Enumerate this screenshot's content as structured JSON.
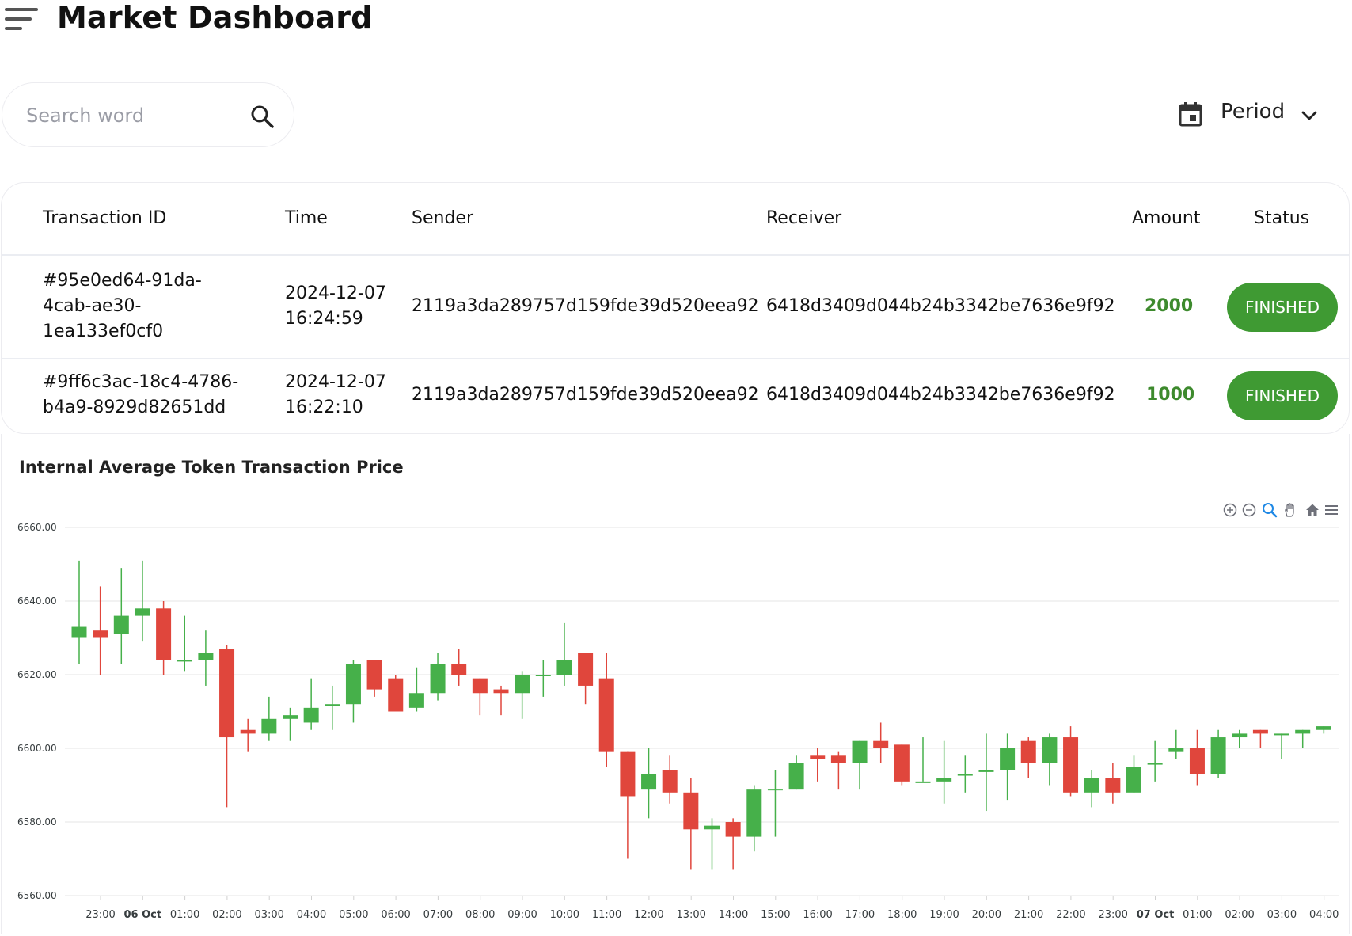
{
  "header": {
    "title": "Market Dashboard",
    "menu_icon": "menu-icon"
  },
  "search": {
    "placeholder": "Search word",
    "value": "",
    "icon": "search-icon"
  },
  "period": {
    "label": "Period",
    "icon": "calendar-icon",
    "dropdown_icon": "chevron-down-icon"
  },
  "table": {
    "columns": [
      "Transaction ID",
      "Time",
      "Sender",
      "Receiver",
      "Amount",
      "Status"
    ],
    "rows": [
      {
        "id_lines": [
          "#95e0ed64-91da-",
          "4cab-ae30-",
          "1ea133ef0cf0"
        ],
        "time_lines": [
          "2024-12-07",
          "16:24:59"
        ],
        "sender": "2119a3da289757d159fde39d520eea92",
        "receiver": "6418d3409d044b24b3342be7636e9f92",
        "amount": "2000",
        "status": "FINISHED"
      },
      {
        "id_lines": [
          "#9ff6c3ac-18c4-4786-",
          "b4a9-8929d82651dd"
        ],
        "time_lines": [
          "2024-12-07",
          "16:22:10"
        ],
        "sender": "2119a3da289757d159fde39d520eea92",
        "receiver": "6418d3409d044b24b3342be7636e9f92",
        "amount": "1000",
        "status": "FINISHED"
      }
    ],
    "status_color": "#3f9a33",
    "amount_color": "#3d8a2d"
  },
  "chart": {
    "toolbar_icons": [
      "zoom-in-icon",
      "zoom-out-icon",
      "zoom-select-icon",
      "pan-icon",
      "home-icon",
      "menu-icon"
    ]
  },
  "chart_data": {
    "type": "candlestick",
    "title": "Internal Average Token Transaction Price",
    "ylim": [
      6560,
      6660
    ],
    "y_ticks": [
      "6560.00",
      "6580.00",
      "6600.00",
      "6620.00",
      "6640.00",
      "6660.00"
    ],
    "x_tick_labels": [
      "23:00",
      "06 Oct",
      "01:00",
      "02:00",
      "03:00",
      "04:00",
      "05:00",
      "06:00",
      "07:00",
      "08:00",
      "09:00",
      "10:00",
      "11:00",
      "12:00",
      "13:00",
      "14:00",
      "15:00",
      "16:00",
      "17:00",
      "18:00",
      "19:00",
      "20:00",
      "21:00",
      "22:00",
      "23:00",
      "07 Oct",
      "01:00",
      "02:00",
      "03:00",
      "04:00"
    ],
    "bold_ticks": [
      "06 Oct",
      "07 Oct"
    ],
    "grid": true,
    "up_color": "#46b04a",
    "down_color": "#e0463c",
    "series": [
      {
        "time": "22:30",
        "o": 6630,
        "h": 6651,
        "l": 6623,
        "c": 6633
      },
      {
        "time": "23:00",
        "o": 6632,
        "h": 6644,
        "l": 6620,
        "c": 6630
      },
      {
        "time": "23:30",
        "o": 6631,
        "h": 6649,
        "l": 6623,
        "c": 6636
      },
      {
        "time": "00:00",
        "o": 6636,
        "h": 6651,
        "l": 6629,
        "c": 6638
      },
      {
        "time": "00:30",
        "o": 6638,
        "h": 6640,
        "l": 6620,
        "c": 6624
      },
      {
        "time": "01:00",
        "o": 6624,
        "h": 6636,
        "l": 6621,
        "c": 6624
      },
      {
        "time": "01:30",
        "o": 6624,
        "h": 6632,
        "l": 6617,
        "c": 6626
      },
      {
        "time": "02:00",
        "o": 6627,
        "h": 6628,
        "l": 6584,
        "c": 6603
      },
      {
        "time": "02:30",
        "o": 6605,
        "h": 6608,
        "l": 6599,
        "c": 6604
      },
      {
        "time": "03:00",
        "o": 6604,
        "h": 6614,
        "l": 6602,
        "c": 6608
      },
      {
        "time": "03:30",
        "o": 6608,
        "h": 6611,
        "l": 6602,
        "c": 6609
      },
      {
        "time": "04:00",
        "o": 6607,
        "h": 6619,
        "l": 6605,
        "c": 6611
      },
      {
        "time": "04:30",
        "o": 6612,
        "h": 6617,
        "l": 6605,
        "c": 6612
      },
      {
        "time": "05:00",
        "o": 6612,
        "h": 6624,
        "l": 6607,
        "c": 6623
      },
      {
        "time": "05:30",
        "o": 6624,
        "h": 6624,
        "l": 6614,
        "c": 6616
      },
      {
        "time": "06:00",
        "o": 6619,
        "h": 6620,
        "l": 6610,
        "c": 6610
      },
      {
        "time": "06:30",
        "o": 6611,
        "h": 6622,
        "l": 6610,
        "c": 6615
      },
      {
        "time": "07:00",
        "o": 6615,
        "h": 6626,
        "l": 6613,
        "c": 6623
      },
      {
        "time": "07:30",
        "o": 6623,
        "h": 6627,
        "l": 6617,
        "c": 6620
      },
      {
        "time": "08:00",
        "o": 6619,
        "h": 6619,
        "l": 6609,
        "c": 6615
      },
      {
        "time": "08:30",
        "o": 6616,
        "h": 6617,
        "l": 6609,
        "c": 6615
      },
      {
        "time": "09:00",
        "o": 6615,
        "h": 6621,
        "l": 6608,
        "c": 6620
      },
      {
        "time": "09:30",
        "o": 6620,
        "h": 6624,
        "l": 6614,
        "c": 6620
      },
      {
        "time": "10:00",
        "o": 6620,
        "h": 6634,
        "l": 6617,
        "c": 6624
      },
      {
        "time": "10:30",
        "o": 6626,
        "h": 6626,
        "l": 6612,
        "c": 6617
      },
      {
        "time": "11:00",
        "o": 6619,
        "h": 6626,
        "l": 6595,
        "c": 6599
      },
      {
        "time": "11:30",
        "o": 6599,
        "h": 6599,
        "l": 6570,
        "c": 6587
      },
      {
        "time": "12:00",
        "o": 6589,
        "h": 6600,
        "l": 6581,
        "c": 6593
      },
      {
        "time": "12:30",
        "o": 6594,
        "h": 6598,
        "l": 6585,
        "c": 6588
      },
      {
        "time": "13:00",
        "o": 6588,
        "h": 6592,
        "l": 6567,
        "c": 6578
      },
      {
        "time": "13:30",
        "o": 6578,
        "h": 6581,
        "l": 6567,
        "c": 6579
      },
      {
        "time": "14:00",
        "o": 6580,
        "h": 6581,
        "l": 6567,
        "c": 6576
      },
      {
        "time": "14:30",
        "o": 6576,
        "h": 6590,
        "l": 6572,
        "c": 6589
      },
      {
        "time": "15:00",
        "o": 6589,
        "h": 6594,
        "l": 6576,
        "c": 6589
      },
      {
        "time": "15:30",
        "o": 6589,
        "h": 6598,
        "l": 6589,
        "c": 6596
      },
      {
        "time": "16:00",
        "o": 6598,
        "h": 6600,
        "l": 6591,
        "c": 6597
      },
      {
        "time": "16:30",
        "o": 6598,
        "h": 6599,
        "l": 6589,
        "c": 6596
      },
      {
        "time": "17:00",
        "o": 6596,
        "h": 6602,
        "l": 6589,
        "c": 6602
      },
      {
        "time": "17:30",
        "o": 6602,
        "h": 6607,
        "l": 6596,
        "c": 6600
      },
      {
        "time": "18:00",
        "o": 6601,
        "h": 6601,
        "l": 6590,
        "c": 6591
      },
      {
        "time": "18:30",
        "o": 6591,
        "h": 6603,
        "l": 6591,
        "c": 6591
      },
      {
        "time": "19:00",
        "o": 6591,
        "h": 6602,
        "l": 6585,
        "c": 6592
      },
      {
        "time": "19:30",
        "o": 6593,
        "h": 6598,
        "l": 6588,
        "c": 6593
      },
      {
        "time": "20:00",
        "o": 6594,
        "h": 6604,
        "l": 6583,
        "c": 6594
      },
      {
        "time": "20:30",
        "o": 6594,
        "h": 6604,
        "l": 6586,
        "c": 6600
      },
      {
        "time": "21:00",
        "o": 6602,
        "h": 6603,
        "l": 6592,
        "c": 6596
      },
      {
        "time": "21:30",
        "o": 6596,
        "h": 6604,
        "l": 6590,
        "c": 6603
      },
      {
        "time": "22:00",
        "o": 6603,
        "h": 6606,
        "l": 6587,
        "c": 6588
      },
      {
        "time": "22:30",
        "o": 6588,
        "h": 6594,
        "l": 6584,
        "c": 6592
      },
      {
        "time": "23:00",
        "o": 6592,
        "h": 6596,
        "l": 6585,
        "c": 6588
      },
      {
        "time": "23:30",
        "o": 6588,
        "h": 6598,
        "l": 6588,
        "c": 6595
      },
      {
        "time": "00:00",
        "o": 6596,
        "h": 6602,
        "l": 6591,
        "c": 6596
      },
      {
        "time": "00:30",
        "o": 6599,
        "h": 6605,
        "l": 6597,
        "c": 6600
      },
      {
        "time": "01:00",
        "o": 6600,
        "h": 6605,
        "l": 6590,
        "c": 6593
      },
      {
        "time": "01:30",
        "o": 6593,
        "h": 6605,
        "l": 6592,
        "c": 6603
      },
      {
        "time": "02:00",
        "o": 6603,
        "h": 6605,
        "l": 6600,
        "c": 6604
      },
      {
        "time": "02:30",
        "o": 6605,
        "h": 6605,
        "l": 6600,
        "c": 6604
      },
      {
        "time": "03:00",
        "o": 6604,
        "h": 6604,
        "l": 6597,
        "c": 6604
      },
      {
        "time": "03:30",
        "o": 6604,
        "h": 6605,
        "l": 6600,
        "c": 6605
      },
      {
        "time": "04:00",
        "o": 6605,
        "h": 6606,
        "l": 6604,
        "c": 6606
      }
    ]
  }
}
